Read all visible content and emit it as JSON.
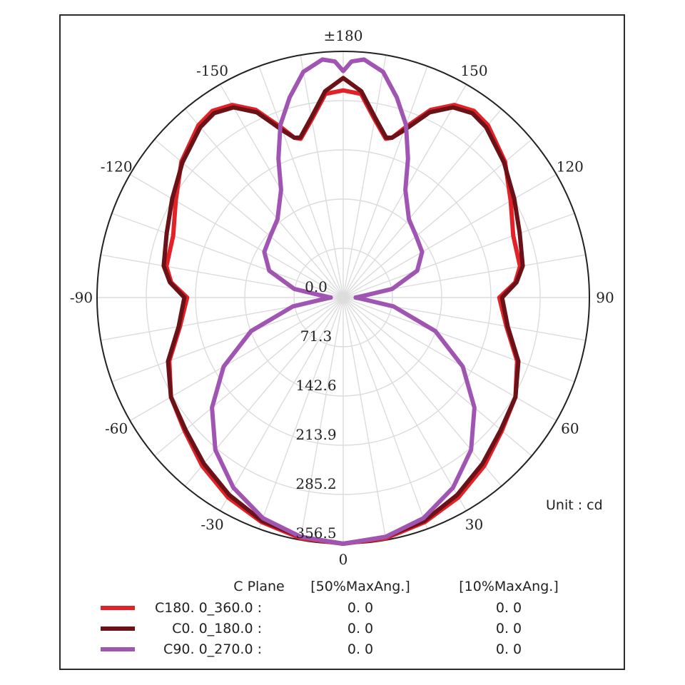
{
  "chart_data": {
    "type": "polar-line",
    "unit_label": "Unit : cd",
    "radial_ticks": [
      "0.0",
      "71.3",
      "142.6",
      "213.9",
      "285.2",
      "356.5"
    ],
    "radial_tick_values": [
      0,
      71.3,
      142.6,
      213.9,
      285.2,
      356.5
    ],
    "rmax": 356.5,
    "angle_tick_labels": {
      "0": "0",
      "30": "30",
      "60": "60",
      "90": "90",
      "120": "120",
      "150": "150",
      "180": "±180",
      "-150": "-150",
      "-120": "-120",
      "-90": "-90",
      "-60": "-60",
      "-30": "-30"
    },
    "grid": true,
    "legend": {
      "header": {
        "plane": "C Plane",
        "col50": "[50%MaxAng.]",
        "col10": "[10%MaxAng.]"
      },
      "rows": [
        {
          "name": "C180. 0_360.0  :",
          "v50": "0. 0",
          "v10": "0. 0",
          "color": "#e32228"
        },
        {
          "name": "C0. 0_180.0  :",
          "v50": "0. 0",
          "v10": "0. 0",
          "color": "#6b1219"
        },
        {
          "name": "C90. 0_270.0 :",
          "v50": "0. 0",
          "v10": "0. 0",
          "color": "#a155b3"
        }
      ]
    },
    "series": [
      {
        "name": "C180. 0_360.0  :",
        "color": "#e32228",
        "points": [
          [
            0,
            356.5
          ],
          [
            10,
            354
          ],
          [
            20,
            346
          ],
          [
            30,
            334
          ],
          [
            40,
            318
          ],
          [
            50,
            300
          ],
          [
            60,
            288
          ],
          [
            70,
            268
          ],
          [
            80,
            240
          ],
          [
            90,
            226
          ],
          [
            95,
            250
          ],
          [
            100,
            260
          ],
          [
            110,
            262
          ],
          [
            120,
            280
          ],
          [
            130,
            306
          ],
          [
            140,
            326
          ],
          [
            145,
            330
          ],
          [
            150,
            322
          ],
          [
            155,
            300
          ],
          [
            160,
            262
          ],
          [
            163,
            242
          ],
          [
            165,
            238
          ],
          [
            170,
            262
          ],
          [
            175,
            296
          ],
          [
            180,
            300
          ]
        ]
      },
      {
        "name": "C0. 0_180.0  :",
        "color": "#6b1219",
        "points": [
          [
            0,
            356.5
          ],
          [
            10,
            352
          ],
          [
            20,
            344
          ],
          [
            30,
            330
          ],
          [
            40,
            314
          ],
          [
            50,
            298
          ],
          [
            60,
            288
          ],
          [
            70,
            270
          ],
          [
            80,
            242
          ],
          [
            90,
            230
          ],
          [
            95,
            252
          ],
          [
            100,
            264
          ],
          [
            110,
            272
          ],
          [
            120,
            286
          ],
          [
            130,
            304
          ],
          [
            140,
            322
          ],
          [
            145,
            326
          ],
          [
            150,
            318
          ],
          [
            155,
            296
          ],
          [
            160,
            258
          ],
          [
            163,
            242
          ],
          [
            165,
            240
          ],
          [
            170,
            265
          ],
          [
            175,
            300
          ],
          [
            180,
            318
          ]
        ]
      },
      {
        "name": "C90. 0_270.0 :",
        "color": "#a155b3",
        "points": [
          [
            0,
            356.5
          ],
          [
            10,
            352
          ],
          [
            20,
            340
          ],
          [
            30,
            318
          ],
          [
            40,
            288
          ],
          [
            50,
            248
          ],
          [
            60,
            200
          ],
          [
            70,
            142
          ],
          [
            80,
            74
          ],
          [
            88,
            22
          ],
          [
            90,
            18
          ],
          [
            92,
            22
          ],
          [
            100,
            72
          ],
          [
            110,
            114
          ],
          [
            120,
            132
          ],
          [
            130,
            138
          ],
          [
            140,
            148
          ],
          [
            150,
            180
          ],
          [
            155,
            222
          ],
          [
            160,
            266
          ],
          [
            165,
            300
          ],
          [
            170,
            332
          ],
          [
            175,
            346
          ],
          [
            178,
            342
          ],
          [
            180,
            328
          ]
        ]
      }
    ]
  }
}
